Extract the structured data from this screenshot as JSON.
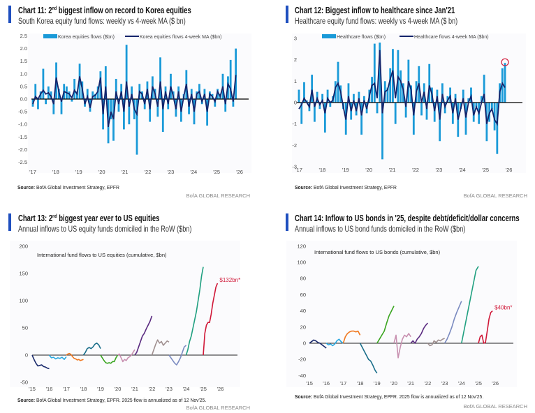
{
  "colors": {
    "accent": "#1f4fbf",
    "bars": "#1a9ad8",
    "ma": "#14246b",
    "annot": "#d01838"
  },
  "panels": [
    {
      "title_pre": "Chart 11: 2",
      "title_sup": "nd",
      "title_post": " biggest inflow on record to Korea equities",
      "subtitle": "South Korea equity fund flows: weekly vs 4-week MA ($ bn)",
      "source_label": "Source:",
      "source_text": " BofA Global Investment Strategy, EPFR",
      "brand": "BofA GLOBAL RESEARCH"
    },
    {
      "title_pre": "Chart 12: Biggest inflow to healthcare since Jan'21",
      "title_sup": "",
      "title_post": "",
      "subtitle": "Healthcare equity fund flows: weekly vs 4-week MA ($ bn)",
      "source_label": "Source:",
      "source_text": " BofA Global Investment Strategy, EPFR",
      "brand": "BofA GLOBAL RESEARCH"
    },
    {
      "title_pre": "Chart 13: 2",
      "title_sup": "nd",
      "title_post": " biggest year ever to US equities",
      "subtitle": "Annual inflows to US equity funds domiciled in the RoW ($bn)",
      "source_label": "Source:",
      "source_text": " BofA Global Investment Strategy, EPFR. 2025 flow is annualized as of 12 Nov'25.",
      "brand": "BofA GLOBAL RESEARCH"
    },
    {
      "title_pre": "Chart 14: Inflow to US bonds in '25, despite debt/deficit/dollar concerns",
      "title_sup": "",
      "title_post": "",
      "subtitle": "Annual inflows to US bond funds domiciled in the RoW ($bn)",
      "source_label": "Source:",
      "source_text": " BofA Global Investment Strategy, EPFR. 2025 flow is annualized as of 12 Nov'25.",
      "brand": "BofA GLOBAL RESEARCH"
    }
  ],
  "chart_data": [
    {
      "type": "bar+line",
      "period": [
        "2017-01",
        "2025-11"
      ],
      "ylim": [
        -2.5,
        2.5
      ],
      "yticks": [
        "2.5",
        "2.0",
        "1.5",
        "1.0",
        "0.5",
        "0.0",
        "-0.5",
        "-1.0",
        "-1.5",
        "-2.0",
        "-2.5"
      ],
      "ytick_values": [
        2.5,
        2,
        1.5,
        1,
        0.5,
        0,
        -0.5,
        -1,
        -1.5,
        -2,
        -2.5
      ],
      "xticks": [
        "'17",
        "'18",
        "'19",
        "'20",
        "'21",
        "'22",
        "'23",
        "'24",
        "'25",
        "'26"
      ],
      "legend": "top",
      "series": [
        {
          "name": "Korea equities flows ($bn)",
          "kind": "bar",
          "values": [
            -0.3,
            0.6,
            -0.4,
            0.3,
            1.2,
            -0.2,
            0.5,
            0.3,
            -0.6,
            1.45,
            0.4,
            -0.6,
            0.6,
            0.5,
            0.3,
            -0.1,
            0.8,
            0.3,
            1.4,
            0.7,
            -0.3,
            0.4,
            -0.5,
            0.3,
            0.2,
            0.5,
            1.1,
            -1.2,
            1.3,
            -1.75,
            -0.8,
            -1.65,
            0.8,
            -0.5,
            0.6,
            -1.2,
            2.15,
            -1.0,
            0.5,
            -0.8,
            -2.2,
            0.6,
            0.3,
            -0.4,
            0.7,
            -0.9,
            0.9,
            0.4,
            -0.7,
            1.65,
            -1.3,
            0.5,
            -0.4,
            1.0,
            0.3,
            -0.7,
            0.5,
            -0.9,
            0.2,
            1.15,
            -0.6,
            0.4,
            -1.0,
            0.3,
            0.6,
            -0.2,
            0.4,
            -1.05,
            0.3,
            0.2,
            -0.3,
            0.4,
            0.2,
            1.0,
            -0.5,
            0.9,
            1.55,
            -0.3,
            2.0
          ]
        },
        {
          "name": "Korea equities flows 4-week MA ($bn)",
          "kind": "line",
          "values": [
            -0.2,
            0.1,
            0.0,
            0.2,
            0.35,
            0.2,
            0.25,
            0.1,
            -0.2,
            0.85,
            0.3,
            -0.1,
            0.3,
            0.25,
            0.2,
            0.05,
            0.35,
            0.2,
            0.9,
            0.4,
            -0.2,
            0.1,
            -0.35,
            0.1,
            0.15,
            0.3,
            0.85,
            -0.6,
            0.5,
            -1.1,
            -0.5,
            -0.8,
            0.3,
            -0.2,
            0.3,
            -0.5,
            0.7,
            -0.3,
            0.2,
            -0.4,
            -0.6,
            0.3,
            0.2,
            -0.2,
            0.4,
            -0.4,
            0.5,
            0.2,
            -0.3,
            0.7,
            -0.4,
            0.3,
            -0.2,
            0.5,
            0.1,
            -0.4,
            0.3,
            -0.5,
            0.1,
            0.6,
            -0.3,
            0.2,
            -0.5,
            0.2,
            0.3,
            -0.1,
            0.2,
            -0.5,
            0.2,
            0.1,
            -0.1,
            0.3,
            0.1,
            0.5,
            -0.2,
            0.6,
            0.4,
            -0.1,
            0.95
          ]
        }
      ]
    },
    {
      "type": "bar+line",
      "period": [
        "2017-01",
        "2025-11"
      ],
      "ylim": [
        -3,
        3
      ],
      "yticks": [
        "3",
        "2",
        "1",
        "0",
        "-1",
        "-2",
        "-3"
      ],
      "ytick_values": [
        3,
        2,
        1,
        0,
        -1,
        -2,
        -3
      ],
      "xticks": [
        "'17",
        "'18",
        "'19",
        "'20",
        "'21",
        "'22",
        "'23",
        "'24",
        "'25",
        "'26"
      ],
      "legend": "top",
      "highlight": "latest week circled (~1.9)",
      "series": [
        {
          "name": "Healthcare flows ($bn)",
          "kind": "bar",
          "values": [
            0.6,
            -1.0,
            0.95,
            0.1,
            -0.4,
            1.3,
            -0.9,
            0.5,
            -0.3,
            0.4,
            -1.4,
            0.6,
            -0.2,
            0.3,
            1.0,
            1.9,
            0.8,
            -0.3,
            -1.5,
            0.9,
            -0.8,
            0.4,
            -0.6,
            0.5,
            -1.5,
            0.3,
            -0.5,
            0.6,
            1.2,
            2.75,
            -0.5,
            2.8,
            -2.65,
            1.0,
            0.7,
            1.6,
            2.5,
            -1.0,
            2.45,
            1.5,
            0.9,
            -0.7,
            2.0,
            0.8,
            -1.5,
            1.0,
            1.7,
            -0.6,
            0.9,
            -0.8,
            1.8,
            0.7,
            -0.9,
            0.6,
            -1.8,
            0.9,
            -0.5,
            0.3,
            0.7,
            -1.0,
            0.4,
            -1.6,
            -0.3,
            0.6,
            -1.5,
            0.2,
            0.7,
            -0.9,
            -0.2,
            -1.0,
            0.3,
            1.3,
            -1.8,
            -0.9,
            -0.3,
            -1.3,
            -2.4,
            0.9,
            1.6,
            1.85
          ]
        },
        {
          "name": "Healthcare flows 4-week MA ($bn)",
          "kind": "line",
          "values": [
            -0.3,
            -0.1,
            0.2,
            0.0,
            -0.2,
            0.6,
            -0.2,
            0.2,
            -0.1,
            0.1,
            -0.5,
            0.2,
            0.0,
            0.1,
            0.7,
            0.9,
            0.5,
            -0.2,
            -0.8,
            0.3,
            -0.4,
            0.1,
            -0.4,
            0.2,
            -0.6,
            0.1,
            -0.3,
            0.3,
            0.8,
            0.9,
            0.2,
            2.45,
            -0.5,
            0.5,
            0.6,
            1.1,
            1.5,
            0.2,
            1.2,
            1.0,
            0.6,
            -0.2,
            1.0,
            0.6,
            -0.6,
            0.5,
            0.9,
            0.0,
            0.5,
            -0.3,
            0.8,
            0.4,
            -0.4,
            0.3,
            -0.8,
            0.4,
            -0.2,
            0.1,
            0.3,
            -0.5,
            0.2,
            -0.8,
            -0.3,
            0.2,
            -0.7,
            0.0,
            0.3,
            -0.6,
            -0.2,
            -0.5,
            0.0,
            0.4,
            -1.0,
            -0.5,
            -0.3,
            -0.8,
            -1.0,
            0.5,
            0.9,
            0.7
          ]
        }
      ]
    },
    {
      "type": "line",
      "title": "International fund flows to US equities (cumulative, $bn)",
      "ylim": [
        -50,
        200
      ],
      "yticks": [
        "200",
        "150",
        "100",
        "50",
        "0",
        "-50"
      ],
      "ytick_values": [
        200,
        150,
        100,
        50,
        0,
        -50
      ],
      "xticks": [
        "'15",
        "'16",
        "'17",
        "'18",
        "'19",
        "'20",
        "'21",
        "'22",
        "'23",
        "'24",
        "'25",
        "'26"
      ],
      "annotation": "$132bn*",
      "series": [
        {
          "year": 2015,
          "color": "#1a2a6c",
          "values": [
            0,
            -8,
            -15,
            -20,
            -19,
            -18,
            -21,
            -22,
            -24,
            -25
          ]
        },
        {
          "year": 2016,
          "color": "#2aa8e0",
          "values": [
            0,
            -5,
            -4,
            -7,
            -5,
            -6,
            -4,
            -8,
            -3
          ]
        },
        {
          "year": 2017,
          "color": "#f07820",
          "values": [
            0,
            2,
            3,
            1,
            -3,
            -6,
            -7,
            -9,
            -8,
            -10,
            -9,
            -8
          ]
        },
        {
          "year": 2018,
          "color": "#1a6e8a",
          "values": [
            0,
            5,
            12,
            14,
            12,
            15,
            20,
            22,
            19,
            12
          ]
        },
        {
          "year": 2019,
          "color": "#3aa520",
          "values": [
            0,
            -5,
            -10,
            -14,
            -15,
            -14,
            -15,
            -12,
            -12,
            -5,
            0
          ]
        },
        {
          "year": 2020,
          "color": "#c890b0",
          "values": [
            0,
            2,
            -5,
            -12,
            -8,
            -10,
            -5,
            -3,
            0,
            5,
            10
          ]
        },
        {
          "year": 2021,
          "color": "#5a2a80",
          "values": [
            0,
            5,
            15,
            25,
            35,
            40,
            48,
            55,
            62,
            72
          ]
        },
        {
          "year": 2022,
          "color": "#a09090",
          "values": [
            0,
            10,
            20,
            28,
            22,
            25,
            18,
            22,
            26,
            24
          ]
        },
        {
          "year": 2023,
          "color": "#7a8ac0",
          "values": [
            0,
            -5,
            -10,
            -15,
            -18,
            -12,
            -5,
            5,
            15,
            18
          ]
        },
        {
          "year": 2024,
          "color": "#20a080",
          "values": [
            0,
            10,
            25,
            35,
            50,
            65,
            80,
            100,
            120,
            145,
            162
          ]
        },
        {
          "year": 2025,
          "color": "#d01838",
          "end": "2025-11",
          "values": [
            0,
            40,
            55,
            60,
            60,
            75,
            95,
            110,
            125,
            132
          ]
        }
      ]
    },
    {
      "type": "line",
      "title": "International fund flows to US bonds (cumulative, $bn)",
      "ylim": [
        -40,
        120
      ],
      "yticks": [
        "120",
        "100",
        "80",
        "60",
        "40",
        "20",
        "0",
        "-20",
        "-40"
      ],
      "ytick_values": [
        120,
        100,
        80,
        60,
        40,
        20,
        0,
        -20,
        -40
      ],
      "xticks": [
        "'15",
        "'16",
        "'17",
        "'18",
        "'19",
        "'20",
        "'21",
        "'22",
        "'23",
        "'24",
        "'25",
        "'26"
      ],
      "annotation": "$40bn*",
      "series": [
        {
          "year": 2015,
          "color": "#1a2a6c",
          "values": [
            0,
            2,
            4,
            3,
            1,
            0,
            -2,
            -4,
            -6
          ]
        },
        {
          "year": 2016,
          "color": "#2aa8e0",
          "values": [
            0,
            -2,
            -1,
            -3,
            -1,
            3,
            5,
            2,
            0
          ]
        },
        {
          "year": 2017,
          "color": "#f07820",
          "values": [
            0,
            8,
            12,
            14,
            15,
            15,
            14,
            15,
            10
          ]
        },
        {
          "year": 2018,
          "color": "#1a6e8a",
          "values": [
            0,
            -5,
            -10,
            -15,
            -20,
            -22,
            -27,
            -33,
            -37
          ]
        },
        {
          "year": 2019,
          "color": "#3aa520",
          "values": [
            0,
            5,
            10,
            15,
            25,
            34,
            40,
            46
          ]
        },
        {
          "year": 2020,
          "color": "#c890b0",
          "values": [
            0,
            10,
            -18,
            -5,
            5,
            10,
            8,
            12,
            8
          ]
        },
        {
          "year": 2021,
          "color": "#5a2a80",
          "values": [
            0,
            3,
            0,
            5,
            8,
            12,
            18,
            22,
            25
          ]
        },
        {
          "year": 2022,
          "color": "#a09090",
          "values": [
            0,
            -3,
            -2,
            3,
            1,
            4,
            3,
            5,
            6
          ]
        },
        {
          "year": 2023,
          "color": "#7a8ac0",
          "values": [
            0,
            5,
            12,
            20,
            30,
            38,
            45,
            52
          ]
        },
        {
          "year": 2024,
          "color": "#20a080",
          "values": [
            0,
            15,
            30,
            45,
            60,
            75,
            90,
            95
          ]
        },
        {
          "year": 2025,
          "color": "#d01838",
          "end": "2025-11",
          "values": [
            0,
            8,
            10,
            0,
            1,
            15,
            30,
            38,
            40
          ]
        }
      ]
    }
  ]
}
